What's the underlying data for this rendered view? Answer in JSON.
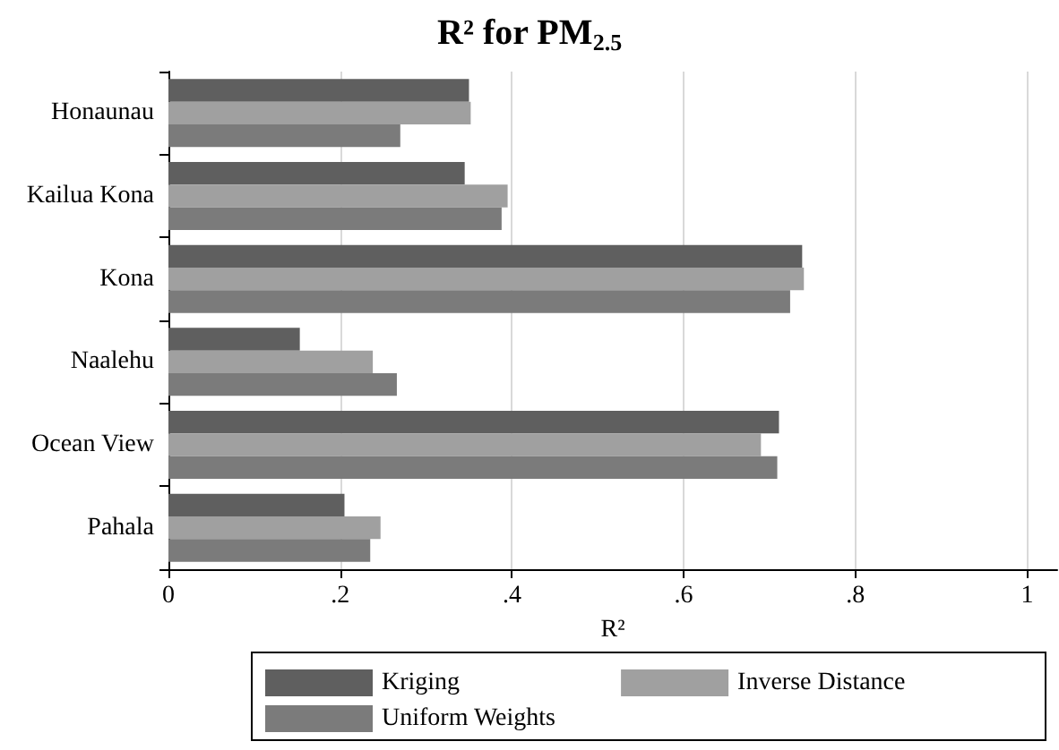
{
  "chart_data": {
    "type": "bar",
    "orientation": "horizontal",
    "title": "R² for PM$_{2.5}$",
    "xlabel": "R²",
    "categories": [
      "Honaunau",
      "Kailua Kona",
      "Kona",
      "Naalehu",
      "Ocean View",
      "Pahala"
    ],
    "series": [
      {
        "name": "Kriging",
        "color": "#5f5f5f",
        "values": [
          0.35,
          0.345,
          0.738,
          0.153,
          0.711,
          0.205
        ]
      },
      {
        "name": "Inverse Distance",
        "color": "#a0a0a0",
        "values": [
          0.352,
          0.395,
          0.74,
          0.238,
          0.69,
          0.247
        ]
      },
      {
        "name": "Uniform Weights",
        "color": "#7b7b7b",
        "values": [
          0.27,
          0.388,
          0.724,
          0.266,
          0.709,
          0.235
        ]
      }
    ],
    "xlim": [
      0,
      1.035
    ],
    "xticks": [
      0,
      {
        "value": 0.2,
        "label": ".2"
      },
      {
        "value": 0.4,
        "label": ".4"
      },
      {
        "value": 0.6,
        "label": ".6"
      },
      {
        "value": 0.8,
        "label": ".8"
      },
      1
    ],
    "grid": "x",
    "legend": "bottom"
  }
}
